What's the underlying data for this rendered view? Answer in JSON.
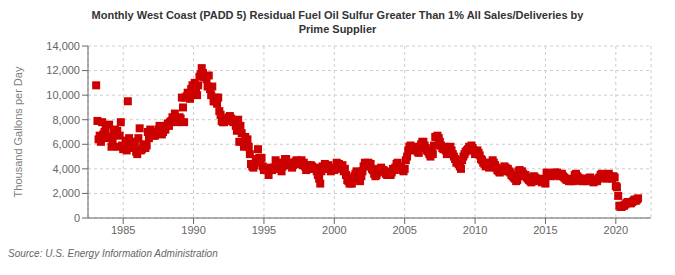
{
  "chart_data": {
    "type": "scatter",
    "title": "Monthly West Coast (PADD 5) Residual Fuel Oil Sulfur Greater Than 1% All Sales/Deliveries by\nPrime Supplier",
    "ylabel": "Thousand Gallons per Day",
    "annotation": "Source: U.S. Energy Information Administration",
    "color": "#CC0000",
    "marker": "square",
    "grid": true,
    "xlim": [
      1982.5,
      2022.5
    ],
    "xticks": [
      1985,
      1990,
      1995,
      2000,
      2005,
      2010,
      2015,
      2020
    ],
    "ylim": [
      0,
      14000
    ],
    "yticks": [
      0,
      {
        "value": 2000,
        "label": "2,000"
      },
      {
        "value": 4000,
        "label": "4,000"
      },
      {
        "value": 6000,
        "label": "6,000"
      },
      {
        "value": 8000,
        "label": "8,000"
      },
      {
        "value": 10000,
        "label": "10,000"
      },
      {
        "value": 12000,
        "label": "12,000"
      },
      {
        "value": 14000,
        "label": "14,000"
      }
    ],
    "x": [
      1983.08,
      1983.17,
      1983.25,
      1983.33,
      1983.42,
      1983.5,
      1983.58,
      1983.67,
      1983.75,
      1983.83,
      1983.92,
      1984.0,
      1984.08,
      1984.17,
      1984.25,
      1984.33,
      1984.42,
      1984.5,
      1984.58,
      1984.67,
      1984.75,
      1984.83,
      1984.92,
      1985.0,
      1985.08,
      1985.17,
      1985.25,
      1985.33,
      1985.42,
      1985.5,
      1985.58,
      1985.67,
      1985.75,
      1985.83,
      1985.92,
      1986.0,
      1986.08,
      1986.17,
      1986.25,
      1986.33,
      1986.42,
      1986.5,
      1986.58,
      1986.67,
      1986.75,
      1986.83,
      1986.92,
      1987.0,
      1987.08,
      1987.17,
      1987.25,
      1987.33,
      1987.42,
      1987.5,
      1987.58,
      1987.67,
      1987.75,
      1987.83,
      1987.92,
      1988.0,
      1988.08,
      1988.17,
      1988.25,
      1988.33,
      1988.42,
      1988.5,
      1988.58,
      1988.67,
      1988.75,
      1988.83,
      1988.92,
      1989.0,
      1989.08,
      1989.17,
      1989.25,
      1989.33,
      1989.42,
      1989.5,
      1989.58,
      1989.67,
      1989.75,
      1989.83,
      1989.92,
      1990.0,
      1990.08,
      1990.17,
      1990.25,
      1990.33,
      1990.42,
      1990.5,
      1990.58,
      1990.67,
      1990.75,
      1990.83,
      1990.92,
      1991.0,
      1991.08,
      1991.17,
      1991.25,
      1991.33,
      1991.42,
      1991.5,
      1991.58,
      1991.67,
      1991.75,
      1991.83,
      1991.92,
      1992.0,
      1992.08,
      1992.17,
      1992.25,
      1992.33,
      1992.42,
      1992.5,
      1992.58,
      1992.67,
      1992.75,
      1992.83,
      1992.92,
      1993.0,
      1993.08,
      1993.17,
      1993.25,
      1993.33,
      1993.42,
      1993.5,
      1993.58,
      1993.67,
      1993.75,
      1993.83,
      1993.92,
      1994.0,
      1994.08,
      1994.17,
      1994.25,
      1994.33,
      1994.42,
      1994.5,
      1994.58,
      1994.67,
      1994.75,
      1994.83,
      1994.92,
      1995.0,
      1995.08,
      1995.17,
      1995.25,
      1995.33,
      1995.42,
      1995.5,
      1995.58,
      1995.67,
      1995.75,
      1995.83,
      1995.92,
      1996.0,
      1996.08,
      1996.17,
      1996.25,
      1996.33,
      1996.42,
      1996.5,
      1996.58,
      1996.67,
      1996.75,
      1996.83,
      1996.92,
      1997.0,
      1997.08,
      1997.17,
      1997.25,
      1997.33,
      1997.42,
      1997.5,
      1997.58,
      1997.67,
      1997.75,
      1997.83,
      1997.92,
      1998.0,
      1998.08,
      1998.17,
      1998.25,
      1998.33,
      1998.42,
      1998.5,
      1998.58,
      1998.67,
      1998.75,
      1998.83,
      1998.92,
      1999.0,
      1999.08,
      1999.17,
      1999.25,
      1999.33,
      1999.42,
      1999.5,
      1999.58,
      1999.67,
      1999.75,
      1999.83,
      1999.92,
      2000.0,
      2000.08,
      2000.17,
      2000.25,
      2000.33,
      2000.42,
      2000.5,
      2000.58,
      2000.67,
      2000.75,
      2000.83,
      2000.92,
      2001.0,
      2001.08,
      2001.17,
      2001.25,
      2001.33,
      2001.42,
      2001.5,
      2001.58,
      2001.67,
      2001.75,
      2001.83,
      2001.92,
      2002.0,
      2002.08,
      2002.17,
      2002.25,
      2002.33,
      2002.42,
      2002.5,
      2002.58,
      2002.67,
      2002.75,
      2002.83,
      2002.92,
      2003.0,
      2003.08,
      2003.17,
      2003.25,
      2003.33,
      2003.42,
      2003.5,
      2003.58,
      2003.67,
      2003.75,
      2003.83,
      2003.92,
      2004.0,
      2004.08,
      2004.17,
      2004.25,
      2004.33,
      2004.42,
      2004.5,
      2004.58,
      2004.67,
      2004.75,
      2004.83,
      2004.92,
      2005.0,
      2005.08,
      2005.17,
      2005.25,
      2005.33,
      2005.42,
      2005.5,
      2005.58,
      2005.67,
      2005.75,
      2005.83,
      2005.92,
      2006.0,
      2006.08,
      2006.17,
      2006.25,
      2006.33,
      2006.42,
      2006.5,
      2006.58,
      2006.67,
      2006.75,
      2006.83,
      2006.92,
      2007.0,
      2007.08,
      2007.17,
      2007.25,
      2007.33,
      2007.42,
      2007.5,
      2007.58,
      2007.67,
      2007.75,
      2007.83,
      2007.92,
      2008.0,
      2008.08,
      2008.17,
      2008.25,
      2008.33,
      2008.42,
      2008.5,
      2008.58,
      2008.67,
      2008.75,
      2008.83,
      2008.92,
      2009.0,
      2009.08,
      2009.17,
      2009.25,
      2009.33,
      2009.42,
      2009.5,
      2009.58,
      2009.67,
      2009.75,
      2009.83,
      2009.92,
      2010.0,
      2010.08,
      2010.17,
      2010.25,
      2010.33,
      2010.42,
      2010.5,
      2010.58,
      2010.67,
      2010.75,
      2010.83,
      2010.92,
      2011.0,
      2011.08,
      2011.17,
      2011.25,
      2011.33,
      2011.42,
      2011.5,
      2011.58,
      2011.67,
      2011.75,
      2011.83,
      2011.92,
      2012.0,
      2012.08,
      2012.17,
      2012.25,
      2012.33,
      2012.42,
      2012.5,
      2012.58,
      2012.67,
      2012.75,
      2012.83,
      2012.92,
      2013.0,
      2013.08,
      2013.17,
      2013.25,
      2013.33,
      2013.42,
      2013.5,
      2013.58,
      2013.67,
      2013.75,
      2013.83,
      2013.92,
      2014.0,
      2014.08,
      2014.17,
      2014.25,
      2014.33,
      2014.42,
      2014.5,
      2014.58,
      2014.67,
      2014.75,
      2014.83,
      2014.92,
      2015.0,
      2015.08,
      2015.17,
      2015.25,
      2015.33,
      2015.42,
      2015.5,
      2015.58,
      2015.67,
      2015.75,
      2015.83,
      2015.92,
      2016.0,
      2016.08,
      2016.17,
      2016.25,
      2016.33,
      2016.42,
      2016.5,
      2016.58,
      2016.67,
      2016.75,
      2016.83,
      2016.92,
      2017.0,
      2017.08,
      2017.17,
      2017.25,
      2017.33,
      2017.42,
      2017.5,
      2017.58,
      2017.67,
      2017.75,
      2017.83,
      2017.92,
      2018.0,
      2018.08,
      2018.17,
      2018.25,
      2018.33,
      2018.42,
      2018.5,
      2018.58,
      2018.67,
      2018.75,
      2018.83,
      2018.92,
      2019.0,
      2019.08,
      2019.17,
      2019.25,
      2019.33,
      2019.42,
      2019.5,
      2019.58,
      2019.67,
      2019.75,
      2019.83,
      2019.92,
      2020.0,
      2020.08,
      2020.17,
      2020.25,
      2020.33,
      2020.42,
      2020.5,
      2020.58,
      2020.67,
      2020.75,
      2020.83,
      2020.92,
      2021.0,
      2021.08,
      2021.17,
      2021.25,
      2021.33,
      2021.42,
      2021.5,
      2021.58
    ],
    "values": [
      10800,
      7900,
      6400,
      6700,
      6200,
      7800,
      6800,
      7000,
      7200,
      6500,
      6600,
      7600,
      6600,
      5800,
      6200,
      7000,
      7200,
      6800,
      7100,
      5800,
      6700,
      7800,
      5900,
      5600,
      5700,
      6300,
      5500,
      9500,
      6500,
      6200,
      5800,
      5700,
      5900,
      6200,
      5400,
      5200,
      6500,
      7300,
      5500,
      5600,
      5900,
      6000,
      5700,
      5900,
      7000,
      6500,
      7200,
      6800,
      6800,
      6700,
      6700,
      6900,
      7000,
      7200,
      7500,
      7100,
      6800,
      7000,
      7200,
      7200,
      7500,
      7700,
      7500,
      7800,
      7900,
      8200,
      8000,
      8500,
      8000,
      7800,
      8100,
      8200,
      8100,
      9800,
      9000,
      7800,
      9800,
      9900,
      10200,
      9900,
      9700,
      10500,
      10800,
      10500,
      11000,
      10200,
      10000,
      10800,
      11500,
      11700,
      12200,
      11800,
      11500,
      11500,
      11300,
      10700,
      11600,
      10500,
      10000,
      10700,
      9500,
      9500,
      9800,
      9300,
      9800,
      8700,
      8400,
      7900,
      7800,
      7800,
      8000,
      7900,
      8100,
      8200,
      8300,
      8100,
      7900,
      7800,
      7900,
      7500,
      7100,
      8000,
      6200,
      7500,
      6900,
      6200,
      5800,
      6600,
      6100,
      6400,
      5800,
      5200,
      4400,
      4200,
      4100,
      4300,
      4800,
      4600,
      5600,
      4900,
      4500,
      4900,
      4200,
      3900,
      4000,
      4000,
      3900,
      3500,
      3900,
      4100,
      3900,
      4000,
      4100,
      4700,
      4500,
      4100,
      4000,
      4200,
      3800,
      4200,
      4500,
      4800,
      4800,
      4500,
      4300,
      4300,
      4400,
      4100,
      4300,
      4500,
      4600,
      4700,
      4500,
      4600,
      4400,
      4700,
      4300,
      4500,
      4200,
      3900,
      4100,
      4300,
      4200,
      4300,
      4200,
      4000,
      4000,
      4100,
      3800,
      3500,
      3200,
      2800,
      3800,
      4200,
      4100,
      4400,
      4000,
      4200,
      4300,
      4000,
      3800,
      4100,
      4000,
      3900,
      4100,
      4500,
      4300,
      4400,
      4200,
      4000,
      4300,
      3800,
      4000,
      3500,
      3100,
      3000,
      2800,
      3200,
      2800,
      3200,
      3400,
      3600,
      3800,
      3500,
      3200,
      3000,
      3400,
      3800,
      4200,
      4500,
      4300,
      4400,
      4500,
      4200,
      4400,
      4000,
      3900,
      3600,
      3400,
      3500,
      3700,
      3900,
      4000,
      4100,
      3800,
      3900,
      3800,
      3600,
      3500,
      3700,
      3600,
      3500,
      3700,
      4000,
      3900,
      4100,
      4400,
      4500,
      4200,
      4000,
      4100,
      3900,
      3800,
      4000,
      4700,
      5000,
      5500,
      5800,
      5900,
      5700,
      5800,
      5700,
      5500,
      5600,
      5400,
      5300,
      5800,
      6000,
      6200,
      6200,
      5900,
      5700,
      5500,
      5400,
      5200,
      5000,
      5300,
      5200,
      5900,
      6600,
      6600,
      6700,
      6500,
      6200,
      5900,
      5700,
      5600,
      5800,
      5500,
      5200,
      5500,
      5600,
      5800,
      5500,
      5200,
      5000,
      4800,
      4500,
      4600,
      4400,
      4200,
      4000,
      4700,
      5000,
      5200,
      5400,
      5500,
      5600,
      5800,
      5700,
      5900,
      5700,
      5500,
      5200,
      5400,
      5500,
      5300,
      5100,
      4800,
      4700,
      4500,
      4400,
      4200,
      4500,
      4300,
      4100,
      4300,
      4500,
      4700,
      4500,
      4300,
      4100,
      3900,
      3800,
      3700,
      3900,
      4000,
      3800,
      4200,
      4100,
      3900,
      4000,
      3800,
      3700,
      3500,
      3400,
      3300,
      3200,
      3000,
      3100,
      3800,
      3900,
      3700,
      3800,
      3600,
      3400,
      3500,
      3300,
      3200,
      3100,
      3000,
      2900,
      3200,
      3400,
      3300,
      3200,
      3100,
      3000,
      3200,
      3100,
      2900,
      3000,
      3000,
      2800,
      3700,
      3600,
      3500,
      3500,
      3400,
      3500,
      3600,
      3700,
      3600,
      3700,
      3600,
      3400,
      3500,
      3600,
      3400,
      3300,
      3200,
      3100,
      3200,
      3000,
      3100,
      3000,
      3100,
      3000,
      3500,
      3600,
      3400,
      3300,
      3200,
      3100,
      3000,
      3200,
      3000,
      3100,
      3200,
      3000,
      3200,
      3300,
      3100,
      3000,
      2900,
      3000,
      3100,
      3000,
      3200,
      3300,
      3500,
      3600,
      3500,
      3400,
      3300,
      3200,
      3500,
      3600,
      3400,
      3300,
      3200,
      3400,
      3300,
      2600,
      2500,
      1800,
      1000,
      900,
      900,
      1000,
      1000,
      1100,
      1200,
      1300,
      1300,
      1200,
      1200,
      1300,
      1400,
      1500,
      1400,
      1500,
      1600
    ]
  }
}
